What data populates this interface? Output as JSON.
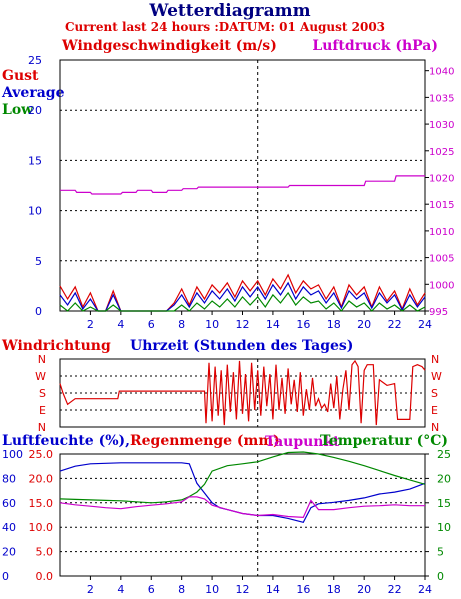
{
  "header": {
    "title": "Wetterdiagramm",
    "subtitle": "Current last 24 hours :DATUM: 01 August 2003"
  },
  "colors": {
    "red": "#dd0000",
    "blue": "#0000cc",
    "green": "#008800",
    "magenta": "#cc00cc",
    "black": "#000000"
  },
  "chart_data": [
    {
      "type": "line",
      "title": "",
      "left_label": "Windgeschwindigkeit (m/s)",
      "right_label": "Luftdruck (hPa)",
      "xlabel": "Uhrzeit (Stunden des Tages)",
      "legend": [
        "Gust",
        "Average",
        "Low"
      ],
      "xlim": [
        0,
        24
      ],
      "xticks": [
        2,
        4,
        6,
        8,
        10,
        12,
        14,
        16,
        18,
        20,
        22,
        24
      ],
      "ylim_left": [
        0,
        25
      ],
      "yticks_left": [
        0,
        5,
        10,
        15,
        20,
        25
      ],
      "ylim_right": [
        995,
        1042
      ],
      "yticks_right": [
        995,
        1000,
        1005,
        1010,
        1015,
        1020,
        1025,
        1030,
        1035,
        1040
      ],
      "grid": true,
      "marker_hour": 13,
      "series": [
        {
          "name": "Luftdruck (hPa)",
          "axis": "right",
          "x": [
            0,
            1,
            1.1,
            2,
            2.1,
            4,
            4.1,
            5,
            5.1,
            6,
            6.1,
            7,
            7.1,
            8,
            8.1,
            9,
            9.1,
            14,
            14.1,
            15,
            15.1,
            18,
            18.1,
            20,
            20.1,
            22,
            22.1,
            24
          ],
          "values": [
            1017.6,
            1017.6,
            1017.2,
            1017.2,
            1016.9,
            1016.9,
            1017.2,
            1017.2,
            1017.6,
            1017.6,
            1017.2,
            1017.2,
            1017.6,
            1017.6,
            1017.9,
            1017.9,
            1018.2,
            1018.2,
            1018.2,
            1018.2,
            1018.5,
            1018.5,
            1018.5,
            1018.5,
            1019.3,
            1019.3,
            1020.3,
            1020.3
          ]
        },
        {
          "name": "Gust",
          "axis": "left",
          "x": [
            0,
            0.5,
            1,
            1.5,
            2,
            2.5,
            3,
            3.5,
            4,
            4.5,
            5,
            5.5,
            6,
            6.5,
            7,
            7.5,
            8,
            8.5,
            9,
            9.5,
            10,
            10.5,
            11,
            11.5,
            12,
            12.5,
            13,
            13.5,
            14,
            14.5,
            15,
            15.5,
            16,
            16.5,
            17,
            17.5,
            18,
            18.5,
            19,
            19.5,
            20,
            20.5,
            21,
            21.5,
            22,
            22.5,
            23,
            23.5,
            24
          ],
          "values": [
            2.5,
            1.2,
            2.4,
            0.4,
            1.8,
            0,
            0,
            2.0,
            0,
            0,
            0,
            0,
            0,
            0,
            0,
            0.8,
            2.2,
            0.6,
            2.4,
            1.2,
            2.6,
            1.8,
            2.8,
            1.4,
            3.0,
            2.0,
            3.0,
            1.6,
            3.2,
            2.2,
            3.6,
            1.8,
            3.0,
            2.2,
            2.6,
            1.2,
            2.4,
            0.4,
            2.6,
            1.6,
            2.4,
            0.4,
            2.4,
            1.0,
            2.0,
            0.2,
            2.2,
            0.6,
            1.8
          ]
        },
        {
          "name": "Average",
          "axis": "left",
          "x": [
            0,
            0.5,
            1,
            1.5,
            2,
            2.5,
            3,
            3.5,
            4,
            4.5,
            5,
            5.5,
            6,
            6.5,
            7,
            7.5,
            8,
            8.5,
            9,
            9.5,
            10,
            10.5,
            11,
            11.5,
            12,
            12.5,
            13,
            13.5,
            14,
            14.5,
            15,
            15.5,
            16,
            16.5,
            17,
            17.5,
            18,
            18.5,
            19,
            19.5,
            20,
            20.5,
            21,
            21.5,
            22,
            22.5,
            23,
            23.5,
            24
          ],
          "values": [
            1.6,
            0.6,
            1.8,
            0.2,
            1.2,
            0,
            0,
            1.6,
            0,
            0,
            0,
            0,
            0,
            0,
            0,
            0.6,
            1.6,
            0.4,
            1.8,
            0.8,
            2.0,
            1.2,
            2.2,
            1.0,
            2.4,
            1.4,
            2.4,
            1.2,
            2.6,
            1.6,
            2.8,
            1.2,
            2.4,
            1.6,
            2.0,
            0.8,
            1.8,
            0.3,
            2.0,
            1.2,
            1.8,
            0.3,
            1.8,
            0.8,
            1.6,
            0.1,
            1.6,
            0.4,
            1.4
          ]
        },
        {
          "name": "Low",
          "axis": "left",
          "x": [
            0,
            0.5,
            1,
            1.5,
            2,
            2.5,
            3,
            3.5,
            4,
            4.5,
            5,
            5.5,
            6,
            6.5,
            7,
            7.5,
            8,
            8.5,
            9,
            9.5,
            10,
            10.5,
            11,
            11.5,
            12,
            12.5,
            13,
            13.5,
            14,
            14.5,
            15,
            15.5,
            16,
            16.5,
            17,
            17.5,
            18,
            18.5,
            19,
            19.5,
            20,
            20.5,
            21,
            21.5,
            22,
            22.5,
            23,
            23.5,
            24
          ],
          "values": [
            0.6,
            0,
            0.8,
            0,
            0.4,
            0,
            0,
            0.6,
            0,
            0,
            0,
            0,
            0,
            0,
            0,
            0,
            0.6,
            0,
            0.8,
            0.2,
            1.0,
            0.4,
            1.2,
            0.4,
            1.4,
            0.6,
            1.4,
            0.4,
            1.6,
            0.8,
            1.8,
            0.6,
            1.4,
            0.8,
            1.0,
            0.2,
            0.8,
            0,
            1.0,
            0.4,
            0.8,
            0,
            0.8,
            0.2,
            0.6,
            0,
            0.6,
            0,
            0.4
          ]
        }
      ]
    },
    {
      "type": "line",
      "title": "Windrichtung",
      "xlabel": "Uhrzeit (Stunden des Tages)",
      "xlim": [
        0,
        24
      ],
      "categories_y": [
        "N",
        "W",
        "S",
        "E",
        "N"
      ],
      "ylim_deg": [
        0,
        360
      ],
      "grid": true,
      "marker_hour": 13,
      "series": [
        {
          "name": "Windrichtung",
          "x": [
            0,
            0.2,
            0.5,
            1,
            3.8,
            3.9,
            9.5,
            9.6,
            9.8,
            10,
            10.2,
            10.4,
            10.6,
            10.8,
            11,
            11.2,
            11.4,
            11.6,
            11.8,
            12,
            12.2,
            12.4,
            12.6,
            12.8,
            13,
            13.2,
            13.4,
            13.6,
            13.8,
            14,
            14.2,
            14.4,
            14.6,
            14.8,
            15,
            15.2,
            15.4,
            15.6,
            15.8,
            16,
            16.2,
            16.4,
            16.6,
            16.8,
            17,
            17.2,
            17.4,
            17.6,
            17.8,
            18,
            18.2,
            18.4,
            18.6,
            18.8,
            19,
            19.2,
            19.4,
            19.6,
            19.8,
            20,
            20.2,
            20.6,
            20.8,
            21,
            21.5,
            22,
            22.2,
            22.5,
            23,
            23.2,
            23.5,
            23.8,
            24
          ],
          "values": [
            230,
            180,
            120,
            150,
            150,
            190,
            190,
            20,
            340,
            30,
            320,
            60,
            300,
            10,
            330,
            80,
            290,
            40,
            350,
            70,
            280,
            30,
            340,
            90,
            300,
            60,
            320,
            110,
            280,
            40,
            330,
            90,
            260,
            70,
            310,
            120,
            250,
            80,
            290,
            60,
            200,
            90,
            260,
            110,
            150,
            100,
            120,
            80,
            230,
            100,
            270,
            40,
            200,
            300,
            90,
            330,
            350,
            320,
            20,
            300,
            330,
            330,
            10,
            250,
            220,
            230,
            40,
            40,
            40,
            320,
            330,
            320,
            300
          ]
        }
      ]
    },
    {
      "type": "line",
      "title": "",
      "left_label": "Luftfeuchte (%)",
      "left_label2": "Regenmenge (mm)",
      "dew_label": "Taupunkt",
      "right_label": "Temperatur (°C)",
      "xlim": [
        0,
        24
      ],
      "xticks": [
        2,
        4,
        6,
        8,
        10,
        12,
        14,
        16,
        18,
        20,
        22,
        24
      ],
      "yticks_left_pct": [
        0,
        20,
        40,
        60,
        80,
        100
      ],
      "yticks_left_mm": [
        "0.0",
        "5.0",
        "10.0",
        "15.0",
        "20.0",
        "25.0"
      ],
      "ylim_right": [
        0,
        25
      ],
      "yticks_right": [
        0,
        5,
        10,
        15,
        20,
        25
      ],
      "grid": true,
      "marker_hour": 13,
      "series": [
        {
          "name": "Luftfeuchte",
          "axis": "right",
          "x": [
            0,
            1,
            2,
            3,
            4,
            5,
            6,
            7,
            8,
            8.5,
            9,
            9.5,
            10,
            10.5,
            11,
            12,
            13,
            14,
            15,
            16,
            16.5,
            17,
            18,
            19,
            20,
            21,
            22,
            23,
            24
          ],
          "values": [
            21.5,
            22.5,
            23,
            23.1,
            23.2,
            23.2,
            23.2,
            23.2,
            23.2,
            23,
            19,
            17,
            15,
            14,
            13.6,
            12.8,
            12.4,
            12.4,
            11.8,
            11,
            14,
            14.8,
            15.1,
            15.5,
            16,
            16.8,
            17.2,
            17.8,
            19
          ]
        },
        {
          "name": "Temperatur",
          "axis": "right",
          "x": [
            0,
            1,
            2,
            3,
            4,
            5,
            6,
            7,
            8,
            8.5,
            9,
            9.5,
            10,
            11,
            12,
            13,
            14,
            15,
            16,
            17,
            18,
            19,
            20,
            21,
            22,
            23,
            24
          ],
          "values": [
            15.8,
            15.7,
            15.6,
            15.5,
            15.4,
            15.2,
            15.0,
            15.2,
            15.6,
            16.3,
            17.2,
            18.8,
            21.5,
            22.6,
            23.0,
            23.4,
            24.4,
            25.3,
            25.4,
            25.0,
            24.3,
            23.5,
            22.6,
            21.6,
            20.6,
            19.7,
            18.8
          ]
        },
        {
          "name": "Taupunkt",
          "axis": "right",
          "x": [
            0,
            1,
            2,
            3,
            4,
            5,
            6,
            7,
            8,
            8.5,
            9,
            9.5,
            10,
            11,
            12,
            13,
            14,
            15,
            16,
            16.5,
            17,
            18,
            19,
            20,
            21,
            22,
            23,
            24
          ],
          "values": [
            15.0,
            14.6,
            14.3,
            14.0,
            13.8,
            14.2,
            14.5,
            14.8,
            15.2,
            16.2,
            16.2,
            15.8,
            14.5,
            13.6,
            12.8,
            12.4,
            12.6,
            12.2,
            12.0,
            15.5,
            13.6,
            13.6,
            14.0,
            14.3,
            14.4,
            14.6,
            14.4,
            14.4
          ]
        }
      ]
    }
  ]
}
